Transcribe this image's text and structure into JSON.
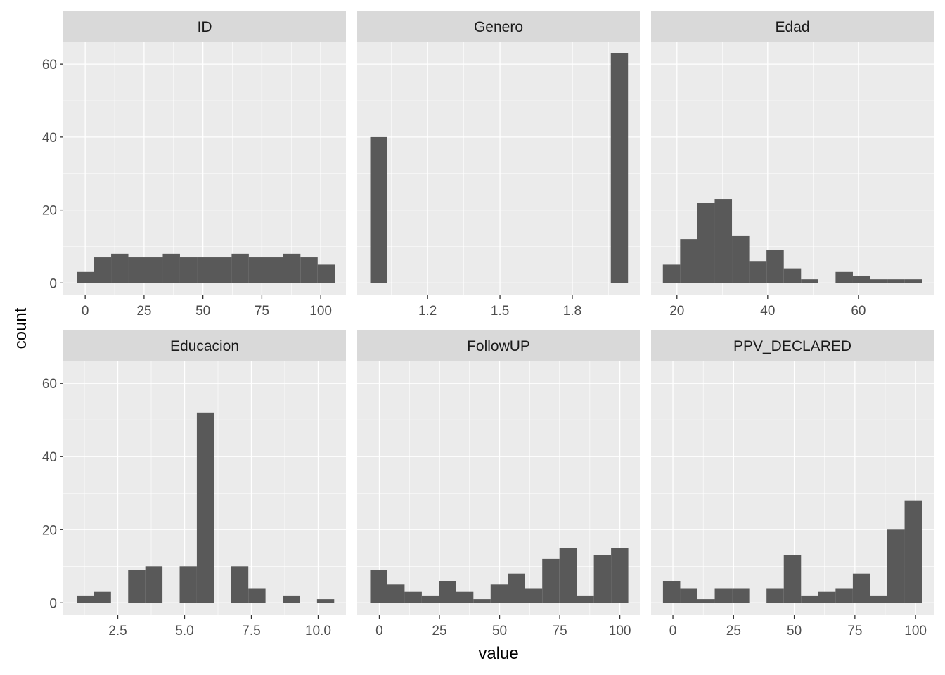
{
  "chart_data": {
    "type": "bar",
    "subtype": "faceted-histogram",
    "xlabel": "value",
    "ylabel": "count",
    "ylim": [
      -3.4,
      66
    ],
    "yticks": [
      0,
      20,
      40,
      60
    ],
    "grid": true,
    "bar_color": "#595959",
    "panel_bg": "#ebebeb",
    "strip_bg": "#d9d9d9",
    "facets": [
      {
        "name": "ID",
        "xlim": [
          -9.3,
          110.7
        ],
        "xticks": [
          0,
          25,
          50,
          75,
          100
        ],
        "xtick_labels": [
          "0",
          "25",
          "50",
          "75",
          "100"
        ],
        "bin_range": [
          -3.6,
          106
        ],
        "counts": [
          3,
          7,
          8,
          7,
          7,
          8,
          7,
          7,
          7,
          8,
          7,
          7,
          8,
          7,
          5
        ]
      },
      {
        "name": "Genero",
        "xlim": [
          0.908,
          2.08
        ],
        "xticks": [
          1.2,
          1.5,
          1.8
        ],
        "xtick_labels": [
          "1.2",
          "1.5",
          "1.8"
        ],
        "bin_range": [
          0.962,
          2.031
        ],
        "counts": [
          40,
          0,
          0,
          0,
          0,
          0,
          0,
          0,
          0,
          0,
          0,
          0,
          0,
          0,
          63
        ]
      },
      {
        "name": "Edad",
        "xlim": [
          14.3,
          76.6
        ],
        "xticks": [
          20,
          40,
          60
        ],
        "xtick_labels": [
          "20",
          "40",
          "60"
        ],
        "bin_range": [
          16.9,
          74
        ],
        "counts": [
          5,
          12,
          22,
          23,
          13,
          6,
          9,
          4,
          1,
          0,
          3,
          2,
          1,
          1,
          1
        ]
      },
      {
        "name": "Educacion",
        "xlim": [
          0.46,
          11.04
        ],
        "xticks": [
          2.5,
          5,
          7.5,
          10
        ],
        "xtick_labels": [
          "2.5",
          "5.0",
          "7.5",
          "10.0"
        ],
        "bin_range": [
          0.96,
          10.6
        ],
        "counts": [
          2,
          3,
          0,
          9,
          10,
          0,
          10,
          52,
          0,
          10,
          4,
          0,
          2,
          0,
          1
        ]
      },
      {
        "name": "FollowUP",
        "xlim": [
          -9.2,
          108.3
        ],
        "xticks": [
          0,
          25,
          50,
          75,
          100
        ],
        "xtick_labels": [
          "0",
          "25",
          "50",
          "75",
          "100"
        ],
        "bin_range": [
          -3.8,
          103.5
        ],
        "counts": [
          9,
          5,
          3,
          2,
          6,
          3,
          1,
          5,
          8,
          4,
          12,
          15,
          2,
          13,
          15
        ]
      },
      {
        "name": "PPV_DECLARED",
        "xlim": [
          -9.0,
          107.5
        ],
        "xticks": [
          0,
          25,
          50,
          75,
          100
        ],
        "xtick_labels": [
          "0",
          "25",
          "50",
          "75",
          "100"
        ],
        "bin_range": [
          -4.1,
          102.6
        ],
        "counts": [
          6,
          4,
          1,
          4,
          4,
          0,
          4,
          13,
          2,
          3,
          4,
          8,
          2,
          20,
          28
        ]
      }
    ]
  }
}
